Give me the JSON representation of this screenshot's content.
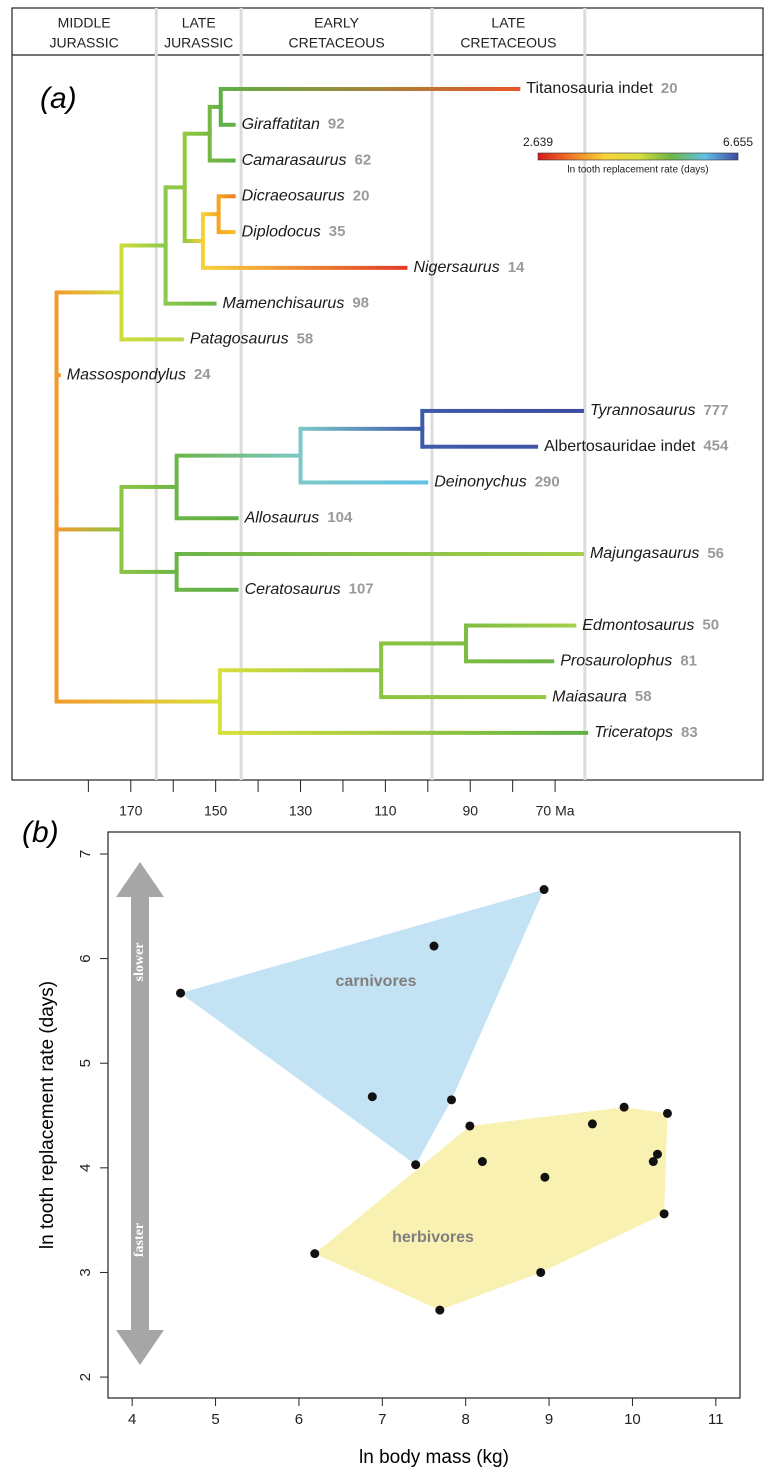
{
  "chart_data": [
    {
      "type": "tree",
      "panel_label": "(a)",
      "periods": [
        [
          "MIDDLE",
          "JURASSIC"
        ],
        [
          "LATE",
          "JURASSIC"
        ],
        [
          "EARLY",
          "CRETACEOUS"
        ],
        [
          "LATE",
          "CRETACEOUS"
        ]
      ],
      "boundaries": [
        164,
        144,
        99,
        63
      ],
      "xlim": [
        198,
        21
      ],
      "xticks": [
        170,
        150,
        130,
        110,
        90,
        {
          "value": 70,
          "label": "70 Ma"
        }
      ],
      "minor_xticks": [
        180,
        160,
        140,
        120,
        100,
        80
      ],
      "colorbar": {
        "min": 2.639,
        "max": 6.655,
        "label": "ln tooth replacement rate (days)",
        "colors": [
          "#d7191c",
          "#f07a28",
          "#f8d23a",
          "#d9df3c",
          "#6db547",
          "#62c1e6",
          "#3d4aa0"
        ]
      },
      "nodes": [
        {
          "age": 187.5,
          "parent": null,
          "color": "#f39a2c"
        },
        {
          "age": 172.2,
          "parent": 0,
          "color": "#cddc3a"
        },
        {
          "age": 161.8,
          "parent": 1,
          "color": "#8cc84b"
        },
        {
          "age": 157.3,
          "parent": 2,
          "color": "#93c83f"
        },
        {
          "age": 151.4,
          "parent": 3,
          "color": "#76b843"
        },
        {
          "age": 148.8,
          "parent": 4,
          "color": "#5fb046"
        },
        {
          "age": 78.2,
          "parent": 5,
          "color": "#e8572c",
          "label": "Titanosauria indet",
          "count": 20,
          "italic": false
        },
        {
          "age": 145.3,
          "parent": 5,
          "color": "#5fb046",
          "label": "Giraffatitan",
          "count": 92,
          "italic": true
        },
        {
          "age": 145.3,
          "parent": 4,
          "color": "#5fb046",
          "label": "Camarasaurus",
          "count": 62,
          "italic": true
        },
        {
          "age": 153.0,
          "parent": 3,
          "color": "#f6d13a"
        },
        {
          "age": 149.3,
          "parent": 9,
          "color": "#f5a623"
        },
        {
          "age": 145.3,
          "parent": 10,
          "color": "#f07a28",
          "label": "Dicraeosaurus",
          "count": 20,
          "italic": true
        },
        {
          "age": 145.3,
          "parent": 10,
          "color": "#f8c12b",
          "label": "Diplodocus",
          "count": 35,
          "italic": true
        },
        {
          "age": 104.8,
          "parent": 9,
          "color": "#e23a2a",
          "label": "Nigersaurus",
          "count": 14,
          "italic": true
        },
        {
          "age": 149.8,
          "parent": 2,
          "color": "#6db547",
          "label": "Mamenchisaurus",
          "count": 98,
          "italic": true
        },
        {
          "age": 157.5,
          "parent": 1,
          "color": "#b9d84a",
          "label": "Patagosaurus",
          "count": 58,
          "italic": true
        },
        {
          "age": 186.5,
          "parent": 0,
          "color": "#f39a2c",
          "label": "Massospondylus",
          "count": 24,
          "italic": true
        },
        {
          "age": 172.2,
          "parent": 0,
          "color": "#8cc443"
        },
        {
          "age": 159.2,
          "parent": 17,
          "color": "#6db547"
        },
        {
          "age": 130.0,
          "parent": 18,
          "color": "#7cc8c8"
        },
        {
          "age": 101.3,
          "parent": 19,
          "color": "#3f5ba8"
        },
        {
          "age": 63.2,
          "parent": 20,
          "color": "#3d4aa0",
          "label": "Tyrannosaurus",
          "count": 777,
          "italic": true
        },
        {
          "age": 74.0,
          "parent": 20,
          "color": "#3e55a6",
          "label": "Albertosauridae indet",
          "count": 454,
          "italic": false
        },
        {
          "age": 99.9,
          "parent": 19,
          "color": "#62c1e6",
          "label": "Deinonychus",
          "count": 290,
          "italic": true
        },
        {
          "age": 144.6,
          "parent": 18,
          "color": "#5fb046",
          "label": "Allosaurus",
          "count": 104,
          "italic": true
        },
        {
          "age": 159.2,
          "parent": 17,
          "color": "#6db547"
        },
        {
          "age": 63.2,
          "parent": 25,
          "color": "#a4cf4a",
          "label": "Majungasaurus",
          "count": 56,
          "italic": true
        },
        {
          "age": 144.6,
          "parent": 25,
          "color": "#5fb046",
          "label": "Ceratosaurus",
          "count": 107,
          "italic": true
        },
        {
          "age": 149.0,
          "parent": 0,
          "color": "#d9df3c"
        },
        {
          "age": 111.0,
          "parent": 28,
          "color": "#8cc443"
        },
        {
          "age": 91.0,
          "parent": 29,
          "color": "#7cbd43"
        },
        {
          "age": 65.0,
          "parent": 30,
          "color": "#a4cf4a",
          "label": "Edmontosaurus",
          "count": 50,
          "italic": true
        },
        {
          "age": 70.2,
          "parent": 30,
          "color": "#6db547",
          "label": "Prosaurolophus",
          "count": 81,
          "italic": true
        },
        {
          "age": 72.1,
          "parent": 29,
          "color": "#93c83f",
          "label": "Maiasaura",
          "count": 58,
          "italic": true
        },
        {
          "age": 62.2,
          "parent": 28,
          "color": "#5fb046",
          "label": "Triceratops",
          "count": 83,
          "italic": true
        }
      ]
    },
    {
      "type": "scatter",
      "panel_label": "(b)",
      "xlabel": "ln body mass (kg)",
      "ylabel": "ln tooth replacement rate (days)",
      "xlim": [
        3.71,
        11.29
      ],
      "ylim": [
        1.8,
        7.21
      ],
      "xticks": [
        4,
        5,
        6,
        7,
        8,
        9,
        10,
        11
      ],
      "yticks": [
        2,
        3,
        4,
        5,
        6,
        7
      ],
      "arrow_labels": [
        "slower",
        "faster"
      ],
      "point_color": "#111111",
      "series": [
        {
          "name": "carnivores",
          "color": "#bde0f3",
          "x": [
            8.94,
            7.62,
            4.58,
            6.88,
            7.83,
            7.4
          ],
          "values": [
            6.66,
            6.12,
            5.67,
            4.68,
            4.65,
            4.03
          ]
        },
        {
          "name": "herbivores",
          "color": "#f8f0a8",
          "x": [
            6.19,
            7.69,
            8.9,
            10.38,
            8.05,
            8.2,
            8.95,
            9.52,
            9.9,
            10.42,
            10.3,
            10.25
          ],
          "values": [
            3.18,
            2.64,
            3.0,
            3.56,
            4.4,
            4.06,
            3.91,
            4.42,
            4.58,
            4.52,
            4.13,
            4.06
          ]
        }
      ]
    }
  ]
}
